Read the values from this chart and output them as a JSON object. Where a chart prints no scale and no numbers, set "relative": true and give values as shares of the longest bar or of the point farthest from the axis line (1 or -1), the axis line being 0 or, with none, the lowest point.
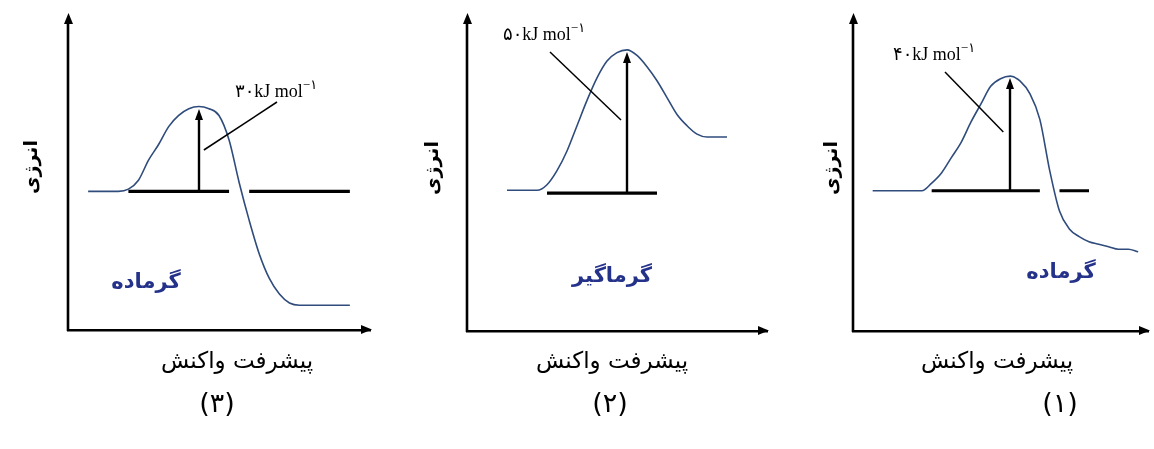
{
  "chart_data": [
    {
      "type": "line",
      "title": "(۳)",
      "xlabel": "پیشرفت واکنش",
      "ylabel": "انرژی",
      "relative": true,
      "annotations": [
        "۳۰kJ mol$^{−۱}$",
        "گرماده"
      ],
      "categories": [
        null,
        null,
        null,
        null,
        null,
        null,
        null,
        null,
        null,
        null,
        null,
        null,
        null,
        null,
        null,
        null,
        null,
        null,
        null,
        null,
        null,
        null,
        null,
        null,
        null,
        null,
        null,
        null,
        null,
        null,
        null
      ],
      "series": [
        {
          "color": "#2f4c7c",
          "values": [
            null,
            null,
            0.62,
            0.62,
            0.62,
            0.62,
            0.63,
            0.67,
            0.76,
            0.83,
            0.91,
            0.96,
            0.99,
            1,
            0.99,
            0.96,
            0.85,
            0.66,
            0.49,
            0.34,
            0.23,
            0.16,
            0.12,
            0.11,
            0.11,
            0.11,
            0.11,
            0.11,
            0.11,
            null,
            null
          ]
        },
        {
          "color": "#000000",
          "values": [
            null,
            null,
            null,
            null,
            null,
            null,
            0.62,
            0.62,
            0.62,
            0.62,
            0.62,
            0.62,
            0.62,
            0.62,
            0.62,
            0.62,
            0.62,
            null,
            0.62,
            0.62,
            0.62,
            0.62,
            0.62,
            0.62,
            0.62,
            0.62,
            0.62,
            0.62,
            0.62,
            null,
            null
          ]
        }
      ]
    },
    {
      "type": "line",
      "title": "(۲)",
      "xlabel": "پیشرفت واکنش",
      "ylabel": "انرژی",
      "relative": true,
      "annotations": [
        "۵۰kJ mol$^{−۱}$",
        "گرماگیر"
      ],
      "categories": [
        null,
        null,
        null,
        null,
        null,
        null,
        null,
        null,
        null,
        null,
        null,
        null,
        null,
        null,
        null,
        null,
        null,
        null,
        null,
        null,
        null,
        null,
        null,
        null,
        null,
        null,
        null,
        null,
        null,
        null,
        null
      ],
      "series": [
        {
          "color": "#2f4c7c",
          "values": [
            null,
            null,
            null,
            null,
            0.5,
            0.5,
            0.5,
            0.5,
            0.52,
            0.57,
            0.64,
            0.73,
            0.82,
            0.9,
            0.96,
            0.99,
            1,
            0.98,
            0.94,
            0.89,
            0.83,
            0.77,
            0.73,
            0.7,
            0.69,
            0.69,
            0.69,
            null,
            null,
            null,
            null
          ]
        },
        {
          "color": "#000000",
          "values": [
            null,
            null,
            null,
            null,
            null,
            null,
            null,
            null,
            0.49,
            0.49,
            0.49,
            0.49,
            0.49,
            0.49,
            0.49,
            0.49,
            0.49,
            0.49,
            0.49,
            0.49,
            null,
            null,
            null,
            null,
            null,
            null,
            null,
            null,
            null,
            null,
            null
          ]
        }
      ]
    },
    {
      "type": "line",
      "title": "(۱)",
      "xlabel": "پیشرفت واکنش",
      "ylabel": "انرژی",
      "relative": true,
      "annotations": [
        "۴۰kJ mol$^{−۱}$",
        "گرماده"
      ],
      "categories": [
        null,
        null,
        null,
        null,
        null,
        null,
        null,
        null,
        null,
        null,
        null,
        null,
        null,
        null,
        null,
        null,
        null,
        null,
        null,
        null,
        null,
        null,
        null,
        null,
        null,
        null,
        null,
        null,
        null,
        null,
        null
      ],
      "series": [
        {
          "color": "#2f4c7c",
          "values": [
            null,
            null,
            0.55,
            0.55,
            0.55,
            0.55,
            0.55,
            0.55,
            0.58,
            0.62,
            0.68,
            0.74,
            0.82,
            0.89,
            0.96,
            0.99,
            1,
            0.98,
            0.93,
            0.83,
            0.63,
            0.47,
            0.4,
            0.37,
            0.35,
            0.34,
            0.33,
            0.32,
            0.32,
            0.31,
            null
          ]
        },
        {
          "color": "#000000",
          "values": [
            null,
            null,
            null,
            null,
            null,
            null,
            null,
            null,
            0.55,
            0.55,
            0.55,
            0.55,
            0.55,
            0.55,
            0.55,
            0.55,
            0.55,
            0.55,
            0.55,
            0.55,
            null,
            0.55,
            0.55,
            0.55,
            0.55,
            null,
            null,
            null,
            null,
            null,
            null
          ]
        }
      ]
    }
  ]
}
